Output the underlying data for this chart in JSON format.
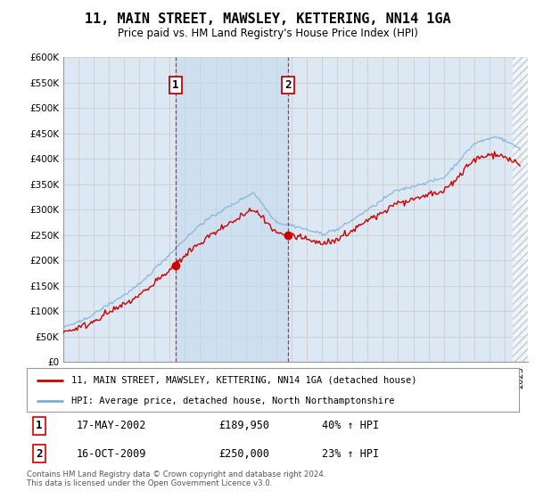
{
  "title": "11, MAIN STREET, MAWSLEY, KETTERING, NN14 1GA",
  "subtitle": "Price paid vs. HM Land Registry's House Price Index (HPI)",
  "bg_color": "#dce9f5",
  "shade_color": "#c5d9ee",
  "red_line_color": "#cc0000",
  "blue_line_color": "#7aaed6",
  "sale1_date_label": "17-MAY-2002",
  "sale1_price": 189950,
  "sale1_hpi": "40% ↑ HPI",
  "sale2_date_label": "16-OCT-2009",
  "sale2_price": 250000,
  "sale2_hpi": "23% ↑ HPI",
  "sale1_year": 2002.37,
  "sale2_year": 2009.79,
  "ylim": [
    0,
    600000
  ],
  "yticks": [
    0,
    50000,
    100000,
    150000,
    200000,
    250000,
    300000,
    350000,
    400000,
    450000,
    500000,
    550000,
    600000
  ],
  "legend_label1": "11, MAIN STREET, MAWSLEY, KETTERING, NN14 1GA (detached house)",
  "legend_label2": "HPI: Average price, detached house, North Northamptonshire",
  "footer_text": "Contains HM Land Registry data © Crown copyright and database right 2024.\nThis data is licensed under the Open Government Licence v3.0.",
  "xlim_start": 1995.0,
  "xlim_end": 2025.5,
  "hatch_start": 2024.5
}
